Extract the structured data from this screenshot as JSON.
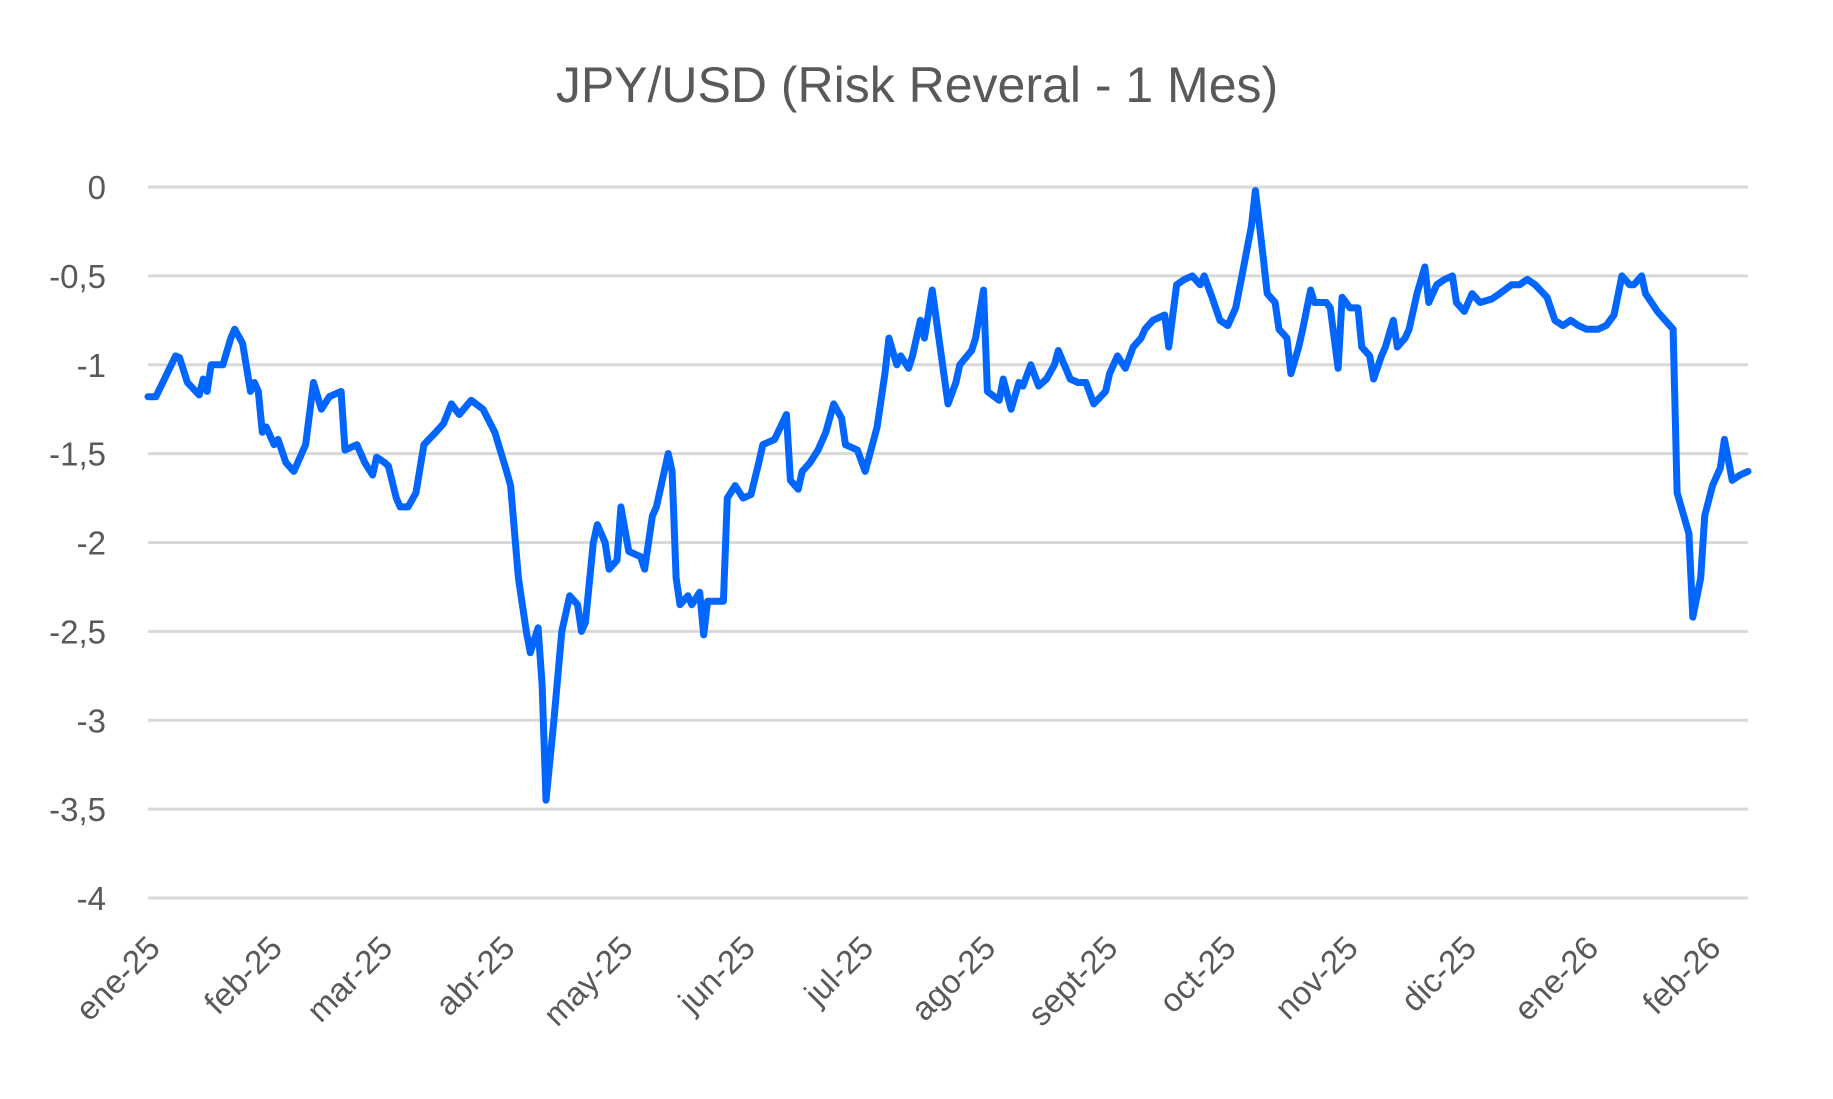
{
  "chart_data": {
    "type": "line",
    "title": "JPY/USD (Risk Reveral - 1 Mes)",
    "xlabel": "",
    "ylabel": "",
    "ylim": [
      -4,
      0
    ],
    "yticks": [
      0,
      -0.5,
      -1,
      -1.5,
      -2,
      -2.5,
      -3,
      -3.5,
      -4
    ],
    "ytick_labels": [
      "0",
      "-0,5",
      "-1",
      "-1,5",
      "-2",
      "-2,5",
      "-3",
      "-3,5",
      "-4"
    ],
    "xlim": [
      "2025-01-01",
      "2026-02-11"
    ],
    "xticks": [
      "2025-01-01",
      "2025-02-01",
      "2025-03-01",
      "2025-04-01",
      "2025-05-01",
      "2025-06-01",
      "2025-07-01",
      "2025-08-01",
      "2025-09-01",
      "2025-10-01",
      "2025-11-01",
      "2025-12-01",
      "2026-01-01",
      "2026-02-01"
    ],
    "xtick_labels": [
      "ene-25",
      "feb-25",
      "mar-25",
      "abr-25",
      "may-25",
      "jun-25",
      "jul-25",
      "ago-25",
      "sept-25",
      "oct-25",
      "nov-25",
      "dic-25",
      "ene-26",
      "feb-26"
    ],
    "grid": "horizontal",
    "legend": "none",
    "line_color": "#0066FF",
    "grid_color": "#D9D9D9",
    "text_color": "#595959",
    "points": [
      [
        "2025-01-01",
        -1.18
      ],
      [
        "2025-01-03",
        -1.18
      ],
      [
        "2025-01-08",
        -0.95
      ],
      [
        "2025-01-09",
        -0.96
      ],
      [
        "2025-01-11",
        -1.1
      ],
      [
        "2025-01-14",
        -1.17
      ],
      [
        "2025-01-15",
        -1.08
      ],
      [
        "2025-01-16",
        -1.15
      ],
      [
        "2025-01-17",
        -1.0
      ],
      [
        "2025-01-20",
        -1.0
      ],
      [
        "2025-01-22",
        -0.85
      ],
      [
        "2025-01-23",
        -0.8
      ],
      [
        "2025-01-25",
        -0.88
      ],
      [
        "2025-01-27",
        -1.15
      ],
      [
        "2025-01-28",
        -1.1
      ],
      [
        "2025-01-29",
        -1.15
      ],
      [
        "2025-01-30",
        -1.38
      ],
      [
        "2025-01-31",
        -1.35
      ],
      [
        "2025-02-02",
        -1.45
      ],
      [
        "2025-02-03",
        -1.42
      ],
      [
        "2025-02-05",
        -1.55
      ],
      [
        "2025-02-07",
        -1.6
      ],
      [
        "2025-02-10",
        -1.45
      ],
      [
        "2025-02-12",
        -1.1
      ],
      [
        "2025-02-14",
        -1.25
      ],
      [
        "2025-02-16",
        -1.18
      ],
      [
        "2025-02-19",
        -1.15
      ],
      [
        "2025-02-20",
        -1.48
      ],
      [
        "2025-02-23",
        -1.45
      ],
      [
        "2025-02-25",
        -1.55
      ],
      [
        "2025-02-27",
        -1.62
      ],
      [
        "2025-02-28",
        -1.52
      ],
      [
        "2025-03-02",
        -1.55
      ],
      [
        "2025-03-03",
        -1.57
      ],
      [
        "2025-03-05",
        -1.75
      ],
      [
        "2025-03-06",
        -1.8
      ],
      [
        "2025-03-08",
        -1.8
      ],
      [
        "2025-03-10",
        -1.72
      ],
      [
        "2025-03-12",
        -1.45
      ],
      [
        "2025-03-15",
        -1.38
      ],
      [
        "2025-03-17",
        -1.33
      ],
      [
        "2025-03-19",
        -1.22
      ],
      [
        "2025-03-21",
        -1.28
      ],
      [
        "2025-03-24",
        -1.2
      ],
      [
        "2025-03-27",
        -1.25
      ],
      [
        "2025-03-30",
        -1.38
      ],
      [
        "2025-04-02",
        -1.6
      ],
      [
        "2025-04-03",
        -1.68
      ],
      [
        "2025-04-05",
        -2.2
      ],
      [
        "2025-04-07",
        -2.5
      ],
      [
        "2025-04-08",
        -2.62
      ],
      [
        "2025-04-10",
        -2.48
      ],
      [
        "2025-04-11",
        -2.8
      ],
      [
        "2025-04-12",
        -3.45
      ],
      [
        "2025-04-14",
        -3.0
      ],
      [
        "2025-04-16",
        -2.5
      ],
      [
        "2025-04-18",
        -2.3
      ],
      [
        "2025-04-20",
        -2.35
      ],
      [
        "2025-04-21",
        -2.5
      ],
      [
        "2025-04-22",
        -2.45
      ],
      [
        "2025-04-24",
        -2.0
      ],
      [
        "2025-04-25",
        -1.9
      ],
      [
        "2025-04-27",
        -2.0
      ],
      [
        "2025-04-28",
        -2.15
      ],
      [
        "2025-04-30",
        -2.1
      ],
      [
        "2025-05-01",
        -1.8
      ],
      [
        "2025-05-03",
        -2.05
      ],
      [
        "2025-05-06",
        -2.08
      ],
      [
        "2025-05-07",
        -2.15
      ],
      [
        "2025-05-09",
        -1.85
      ],
      [
        "2025-05-10",
        -1.8
      ],
      [
        "2025-05-13",
        -1.5
      ],
      [
        "2025-05-14",
        -1.6
      ],
      [
        "2025-05-15",
        -2.2
      ],
      [
        "2025-05-16",
        -2.35
      ],
      [
        "2025-05-18",
        -2.3
      ],
      [
        "2025-05-19",
        -2.35
      ],
      [
        "2025-05-21",
        -2.28
      ],
      [
        "2025-05-22",
        -2.52
      ],
      [
        "2025-05-23",
        -2.33
      ],
      [
        "2025-05-27",
        -2.33
      ],
      [
        "2025-05-28",
        -1.75
      ],
      [
        "2025-05-30",
        -1.68
      ],
      [
        "2025-06-01",
        -1.75
      ],
      [
        "2025-06-03",
        -1.73
      ],
      [
        "2025-06-05",
        -1.55
      ],
      [
        "2025-06-06",
        -1.45
      ],
      [
        "2025-06-09",
        -1.42
      ],
      [
        "2025-06-12",
        -1.28
      ],
      [
        "2025-06-13",
        -1.65
      ],
      [
        "2025-06-15",
        -1.7
      ],
      [
        "2025-06-16",
        -1.6
      ],
      [
        "2025-06-18",
        -1.55
      ],
      [
        "2025-06-20",
        -1.48
      ],
      [
        "2025-06-22",
        -1.38
      ],
      [
        "2025-06-24",
        -1.22
      ],
      [
        "2025-06-26",
        -1.3
      ],
      [
        "2025-06-27",
        -1.45
      ],
      [
        "2025-06-30",
        -1.48
      ],
      [
        "2025-07-02",
        -1.6
      ],
      [
        "2025-07-05",
        -1.35
      ],
      [
        "2025-07-07",
        -1.05
      ],
      [
        "2025-07-08",
        -0.85
      ],
      [
        "2025-07-10",
        -1.0
      ],
      [
        "2025-07-11",
        -0.95
      ],
      [
        "2025-07-13",
        -1.02
      ],
      [
        "2025-07-14",
        -0.95
      ],
      [
        "2025-07-16",
        -0.75
      ],
      [
        "2025-07-17",
        -0.85
      ],
      [
        "2025-07-19",
        -0.58
      ],
      [
        "2025-07-21",
        -0.9
      ],
      [
        "2025-07-23",
        -1.22
      ],
      [
        "2025-07-25",
        -1.1
      ],
      [
        "2025-07-26",
        -1.0
      ],
      [
        "2025-07-29",
        -0.92
      ],
      [
        "2025-07-30",
        -0.85
      ],
      [
        "2025-08-01",
        -0.58
      ],
      [
        "2025-08-02",
        -1.15
      ],
      [
        "2025-08-05",
        -1.2
      ],
      [
        "2025-08-06",
        -1.08
      ],
      [
        "2025-08-08",
        -1.25
      ],
      [
        "2025-08-10",
        -1.1
      ],
      [
        "2025-08-11",
        -1.12
      ],
      [
        "2025-08-13",
        -1.0
      ],
      [
        "2025-08-15",
        -1.12
      ],
      [
        "2025-08-17",
        -1.08
      ],
      [
        "2025-08-19",
        -1.0
      ],
      [
        "2025-08-20",
        -0.92
      ],
      [
        "2025-08-23",
        -1.08
      ],
      [
        "2025-08-25",
        -1.1
      ],
      [
        "2025-08-27",
        -1.1
      ],
      [
        "2025-08-29",
        -1.22
      ],
      [
        "2025-09-01",
        -1.15
      ],
      [
        "2025-09-02",
        -1.05
      ],
      [
        "2025-09-04",
        -0.95
      ],
      [
        "2025-09-06",
        -1.02
      ],
      [
        "2025-09-08",
        -0.9
      ],
      [
        "2025-09-10",
        -0.85
      ],
      [
        "2025-09-11",
        -0.8
      ],
      [
        "2025-09-13",
        -0.75
      ],
      [
        "2025-09-16",
        -0.72
      ],
      [
        "2025-09-17",
        -0.9
      ],
      [
        "2025-09-19",
        -0.55
      ],
      [
        "2025-09-21",
        -0.52
      ],
      [
        "2025-09-23",
        -0.5
      ],
      [
        "2025-09-25",
        -0.55
      ],
      [
        "2025-09-26",
        -0.5
      ],
      [
        "2025-09-28",
        -0.62
      ],
      [
        "2025-09-30",
        -0.75
      ],
      [
        "2025-10-02",
        -0.78
      ],
      [
        "2025-10-04",
        -0.68
      ],
      [
        "2025-10-06",
        -0.45
      ],
      [
        "2025-10-08",
        -0.22
      ],
      [
        "2025-10-09",
        -0.02
      ],
      [
        "2025-10-11",
        -0.4
      ],
      [
        "2025-10-12",
        -0.6
      ],
      [
        "2025-10-14",
        -0.65
      ],
      [
        "2025-10-15",
        -0.8
      ],
      [
        "2025-10-17",
        -0.85
      ],
      [
        "2025-10-18",
        -1.05
      ],
      [
        "2025-10-20",
        -0.9
      ],
      [
        "2025-10-21",
        -0.8
      ],
      [
        "2025-10-23",
        -0.58
      ],
      [
        "2025-10-24",
        -0.65
      ],
      [
        "2025-10-27",
        -0.65
      ],
      [
        "2025-10-28",
        -0.68
      ],
      [
        "2025-10-30",
        -1.02
      ],
      [
        "2025-10-31",
        -0.62
      ],
      [
        "2025-11-02",
        -0.68
      ],
      [
        "2025-11-04",
        -0.68
      ],
      [
        "2025-11-05",
        -0.9
      ],
      [
        "2025-11-07",
        -0.95
      ],
      [
        "2025-11-08",
        -1.08
      ],
      [
        "2025-11-10",
        -0.95
      ],
      [
        "2025-11-11",
        -0.9
      ],
      [
        "2025-11-13",
        -0.75
      ],
      [
        "2025-11-14",
        -0.9
      ],
      [
        "2025-11-16",
        -0.85
      ],
      [
        "2025-11-17",
        -0.8
      ],
      [
        "2025-11-19",
        -0.6
      ],
      [
        "2025-11-21",
        -0.45
      ],
      [
        "2025-11-22",
        -0.65
      ],
      [
        "2025-11-24",
        -0.55
      ],
      [
        "2025-11-26",
        -0.52
      ],
      [
        "2025-11-28",
        -0.5
      ],
      [
        "2025-11-29",
        -0.65
      ],
      [
        "2025-12-01",
        -0.7
      ],
      [
        "2025-12-03",
        -0.6
      ],
      [
        "2025-12-05",
        -0.65
      ],
      [
        "2025-12-08",
        -0.63
      ],
      [
        "2025-12-10",
        -0.6
      ],
      [
        "2025-12-13",
        -0.55
      ],
      [
        "2025-12-15",
        -0.55
      ],
      [
        "2025-12-17",
        -0.52
      ],
      [
        "2025-12-19",
        -0.55
      ],
      [
        "2025-12-22",
        -0.62
      ],
      [
        "2025-12-24",
        -0.75
      ],
      [
        "2025-12-26",
        -0.78
      ],
      [
        "2025-12-28",
        -0.75
      ],
      [
        "2025-12-30",
        -0.78
      ],
      [
        "2026-01-01",
        -0.8
      ],
      [
        "2026-01-04",
        -0.8
      ],
      [
        "2026-01-06",
        -0.78
      ],
      [
        "2026-01-08",
        -0.72
      ],
      [
        "2026-01-10",
        -0.5
      ],
      [
        "2026-01-12",
        -0.55
      ],
      [
        "2026-01-13",
        -0.55
      ],
      [
        "2026-01-15",
        -0.5
      ],
      [
        "2026-01-16",
        -0.6
      ],
      [
        "2026-01-19",
        -0.7
      ],
      [
        "2026-01-21",
        -0.75
      ],
      [
        "2026-01-23",
        -0.8
      ],
      [
        "2026-01-24",
        -1.72
      ],
      [
        "2026-01-27",
        -1.95
      ],
      [
        "2026-01-28",
        -2.42
      ],
      [
        "2026-01-30",
        -2.2
      ],
      [
        "2026-01-31",
        -1.85
      ],
      [
        "2026-02-02",
        -1.68
      ],
      [
        "2026-02-04",
        -1.58
      ],
      [
        "2026-02-05",
        -1.42
      ],
      [
        "2026-02-07",
        -1.65
      ],
      [
        "2026-02-09",
        -1.62
      ],
      [
        "2026-02-11",
        -1.6
      ]
    ]
  }
}
